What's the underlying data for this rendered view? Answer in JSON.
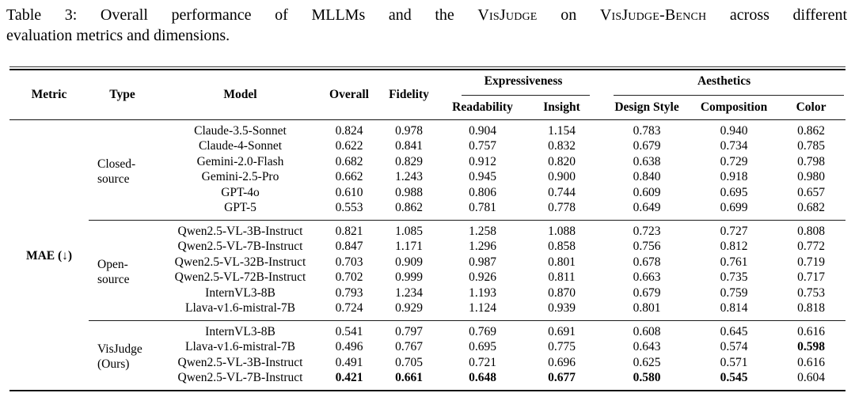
{
  "caption": {
    "line1": {
      "prefix": "Table 3: Overall performance of MLLMs and the ",
      "visjudge": "VisJudge",
      "mid": " on ",
      "bench": "VisJudge-Bench",
      "suffix": " across different"
    },
    "line2": "evaluation metrics and dimensions."
  },
  "table": {
    "header": {
      "metric": "Metric",
      "type": "Type",
      "model": "Model",
      "overall": "Overall",
      "fidelity": "Fidelity",
      "expressiveness": "Expressiveness",
      "aesthetics": "Aesthetics",
      "readability": "Readability",
      "insight": "Insight",
      "design_style": "Design Style",
      "composition": "Composition",
      "color": "Color"
    },
    "metric_label": "MAE (↓)",
    "groups": [
      {
        "type_lines": [
          "Closed-",
          "source"
        ],
        "rows": [
          {
            "model": "Claude-3.5-Sonnet",
            "values": [
              "0.824",
              "0.978",
              "0.904",
              "1.154",
              "0.783",
              "0.940",
              "0.862"
            ],
            "bold": []
          },
          {
            "model": "Claude-4-Sonnet",
            "values": [
              "0.622",
              "0.841",
              "0.757",
              "0.832",
              "0.679",
              "0.734",
              "0.785"
            ],
            "bold": []
          },
          {
            "model": "Gemini-2.0-Flash",
            "values": [
              "0.682",
              "0.829",
              "0.912",
              "0.820",
              "0.638",
              "0.729",
              "0.798"
            ],
            "bold": []
          },
          {
            "model": "Gemini-2.5-Pro",
            "values": [
              "0.662",
              "1.243",
              "0.945",
              "0.900",
              "0.840",
              "0.918",
              "0.980"
            ],
            "bold": []
          },
          {
            "model": "GPT-4o",
            "values": [
              "0.610",
              "0.988",
              "0.806",
              "0.744",
              "0.609",
              "0.695",
              "0.657"
            ],
            "bold": []
          },
          {
            "model": "GPT-5",
            "values": [
              "0.553",
              "0.862",
              "0.781",
              "0.778",
              "0.649",
              "0.699",
              "0.682"
            ],
            "bold": []
          }
        ]
      },
      {
        "type_lines": [
          "Open-",
          "source"
        ],
        "rows": [
          {
            "model": "Qwen2.5-VL-3B-Instruct",
            "values": [
              "0.821",
              "1.085",
              "1.258",
              "1.088",
              "0.723",
              "0.727",
              "0.808"
            ],
            "bold": []
          },
          {
            "model": "Qwen2.5-VL-7B-Instruct",
            "values": [
              "0.847",
              "1.171",
              "1.296",
              "0.858",
              "0.756",
              "0.812",
              "0.772"
            ],
            "bold": []
          },
          {
            "model": "Qwen2.5-VL-32B-Instruct",
            "values": [
              "0.703",
              "0.909",
              "0.987",
              "0.801",
              "0.678",
              "0.761",
              "0.719"
            ],
            "bold": []
          },
          {
            "model": "Qwen2.5-VL-72B-Instruct",
            "values": [
              "0.702",
              "0.999",
              "0.926",
              "0.811",
              "0.663",
              "0.735",
              "0.717"
            ],
            "bold": []
          },
          {
            "model": "InternVL3-8B",
            "values": [
              "0.793",
              "1.234",
              "1.193",
              "0.870",
              "0.679",
              "0.759",
              "0.753"
            ],
            "bold": []
          },
          {
            "model": "Llava-v1.6-mistral-7B",
            "values": [
              "0.724",
              "0.929",
              "1.124",
              "0.939",
              "0.801",
              "0.814",
              "0.818"
            ],
            "bold": []
          }
        ]
      },
      {
        "type_lines": [
          "VisJudge",
          "(Ours)"
        ],
        "rows": [
          {
            "model": "InternVL3-8B",
            "values": [
              "0.541",
              "0.797",
              "0.769",
              "0.691",
              "0.608",
              "0.645",
              "0.616"
            ],
            "bold": []
          },
          {
            "model": "Llava-v1.6-mistral-7B",
            "values": [
              "0.496",
              "0.767",
              "0.695",
              "0.775",
              "0.643",
              "0.574",
              "0.598"
            ],
            "bold": [
              6
            ]
          },
          {
            "model": "Qwen2.5-VL-3B-Instruct",
            "values": [
              "0.491",
              "0.705",
              "0.721",
              "0.696",
              "0.625",
              "0.571",
              "0.616"
            ],
            "bold": []
          },
          {
            "model": "Qwen2.5-VL-7B-Instruct",
            "values": [
              "0.421",
              "0.661",
              "0.648",
              "0.677",
              "0.580",
              "0.545",
              "0.604"
            ],
            "bold": [
              0,
              1,
              2,
              3,
              4,
              5
            ]
          }
        ]
      }
    ]
  }
}
